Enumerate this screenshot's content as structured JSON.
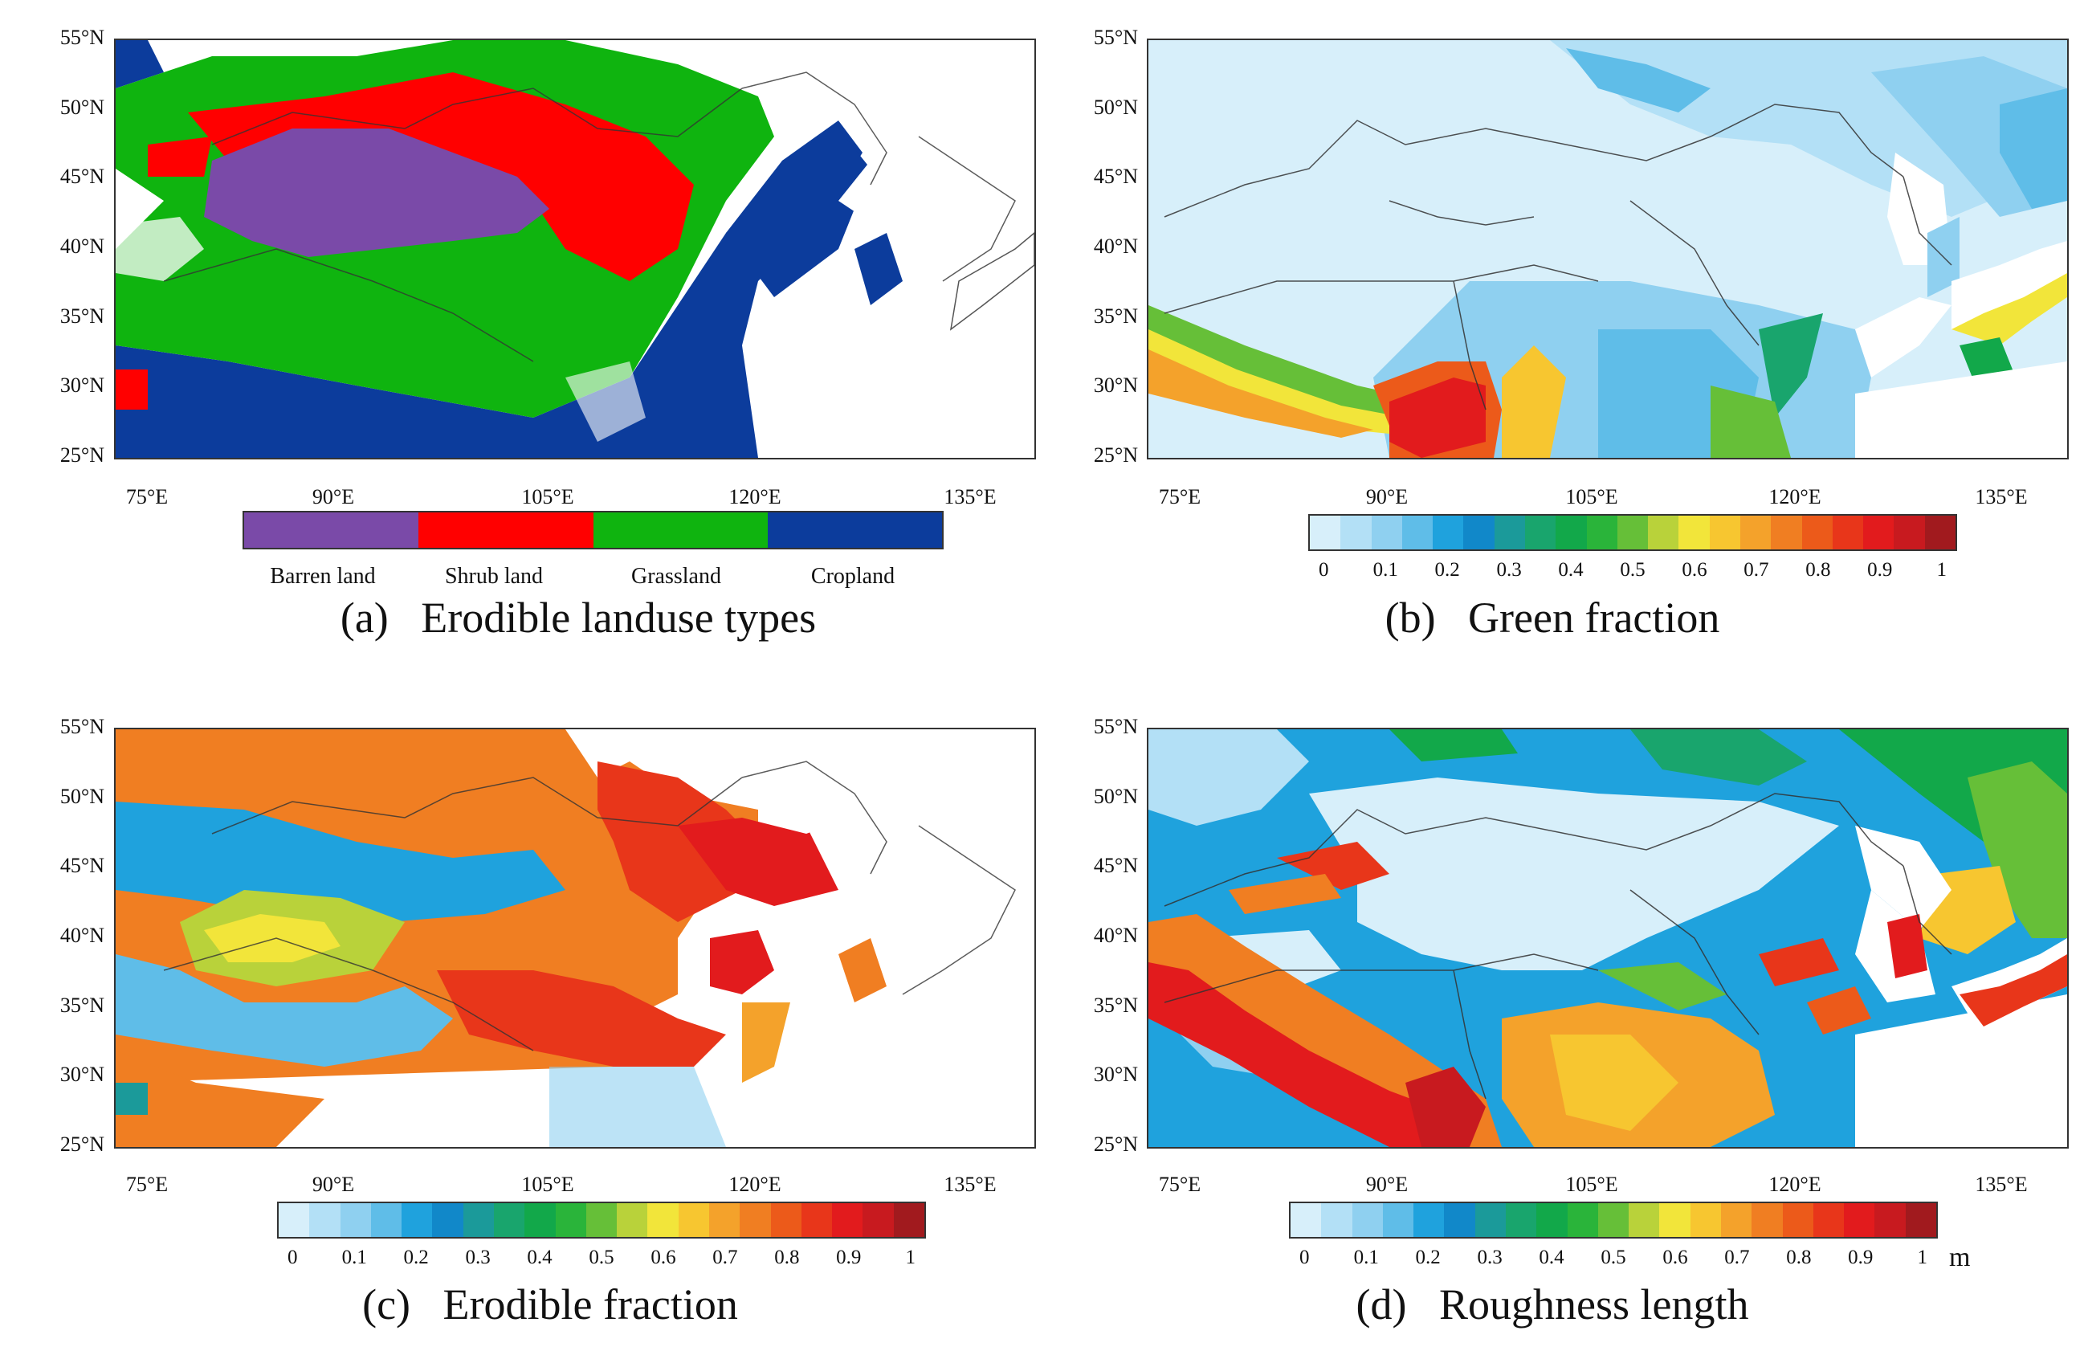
{
  "lat_labels": [
    "55°N",
    "50°N",
    "45°N",
    "40°N",
    "35°N",
    "30°N",
    "25°N"
  ],
  "lon_labels": [
    "75°E",
    "90°E",
    "105°E",
    "120°E",
    "135°E"
  ],
  "continuous_colorbar": {
    "colors": [
      "#d7effa",
      "#b3e0f6",
      "#8fd0f0",
      "#5fbde8",
      "#1fa2dd",
      "#1188c9",
      "#1b9a9a",
      "#19a56d",
      "#12a84a",
      "#2ab43a",
      "#66bf38",
      "#b9d23a",
      "#f2e53a",
      "#f7c630",
      "#f4a22b",
      "#f07e22",
      "#ec5a1a",
      "#e8361a",
      "#e21b1d",
      "#c81a1f",
      "#a11a1e"
    ],
    "tick_labels": [
      "0",
      "0.1",
      "0.2",
      "0.3",
      "0.4",
      "0.5",
      "0.6",
      "0.7",
      "0.8",
      "0.9",
      "1"
    ]
  },
  "panels": {
    "a": {
      "title": "(a)   Erodible landuse types",
      "legend": [
        {
          "label": "Barren land",
          "color": "#7a4aa8"
        },
        {
          "label": "Shrub land",
          "color": "#ff0000"
        },
        {
          "label": "Grassland",
          "color": "#0fb40f"
        },
        {
          "label": "Cropland",
          "color": "#0c3c9c"
        }
      ]
    },
    "b": {
      "title": "(b)   Green fraction"
    },
    "c": {
      "title": "(c)   Erodible fraction"
    },
    "d": {
      "title": "(d)   Roughness length",
      "unit": "m"
    }
  }
}
